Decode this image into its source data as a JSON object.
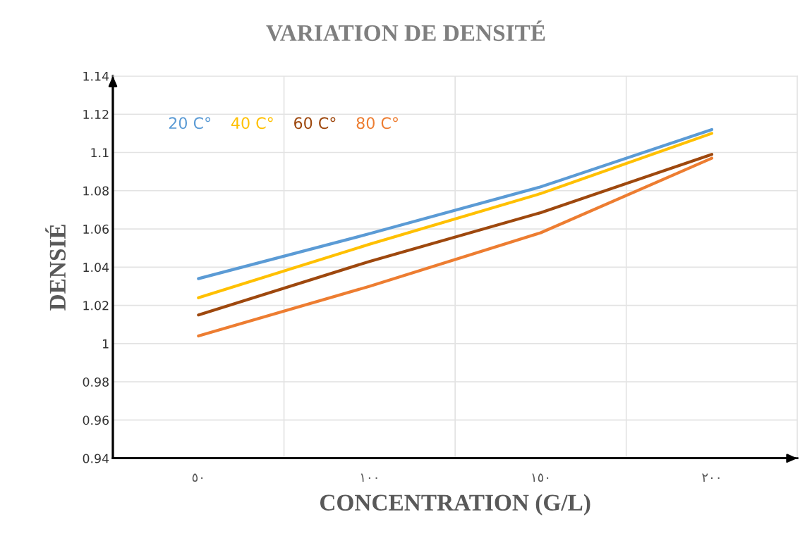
{
  "chart_data": {
    "type": "line",
    "title": "VARIATION DE DENSITÉ",
    "xlabel": "CONCENTRATION (G/L)",
    "ylabel": "DENSIÉ",
    "categories": [
      "٥٠",
      "١٠٠",
      "١٥٠",
      "٢٠٠"
    ],
    "series": [
      {
        "name": "20 C°",
        "color": "#5b9bd5",
        "values": [
          1.034,
          1.0575,
          1.082,
          1.112
        ]
      },
      {
        "name": "40 C°",
        "color": "#ffc000",
        "values": [
          1.024,
          1.052,
          1.0785,
          1.11
        ]
      },
      {
        "name": "60 C°",
        "color": "#9e480e",
        "values": [
          1.015,
          1.043,
          1.0685,
          1.099
        ]
      },
      {
        "name": "80 C°",
        "color": "#ed7d31",
        "values": [
          1.004,
          1.03,
          1.058,
          1.097
        ]
      }
    ],
    "ylim": [
      0.94,
      1.14
    ],
    "yticks": [
      0.94,
      0.96,
      0.98,
      1,
      1.02,
      1.04,
      1.06,
      1.08,
      1.1,
      1.12,
      1.14
    ],
    "grid": true,
    "legend": "top left",
    "marker": "none",
    "line_style": "solid"
  }
}
